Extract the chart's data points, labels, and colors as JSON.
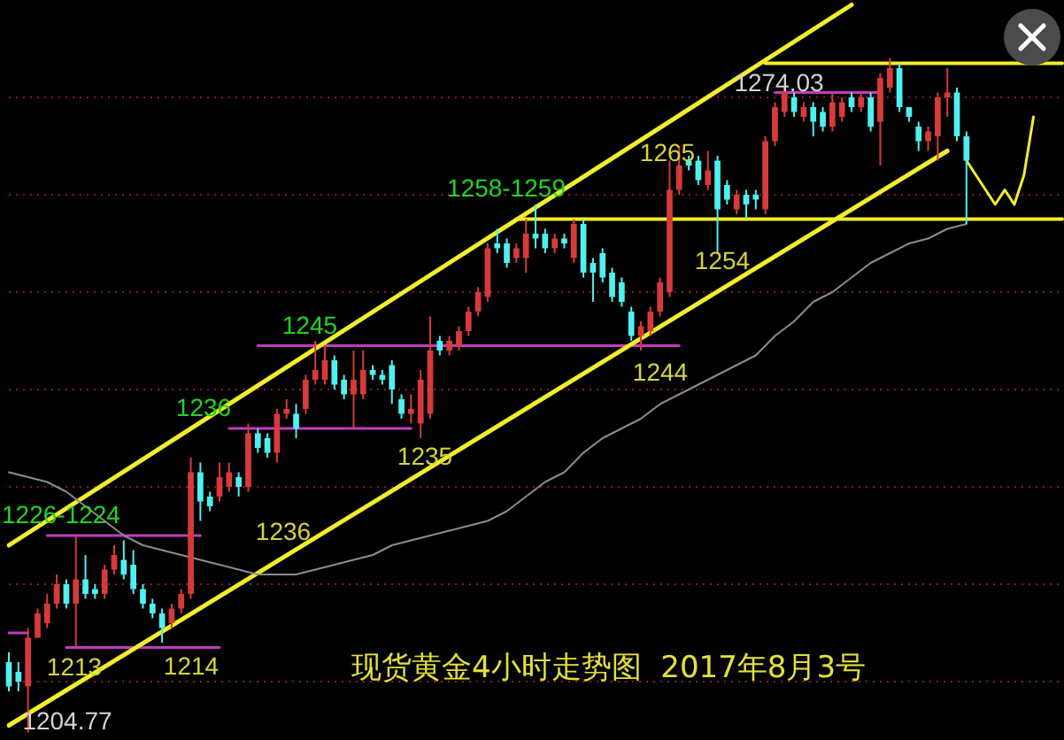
{
  "chart_data": {
    "type": "candlestick",
    "title": "现货黄金4小时走势图  2017年8月3号",
    "categories": [
      null,
      null,
      null,
      null,
      null,
      null,
      null,
      null,
      null,
      null,
      null,
      null,
      null,
      null,
      null,
      null,
      null,
      null,
      null,
      null,
      null,
      null,
      null,
      null,
      null,
      null,
      null,
      null,
      null,
      null,
      null,
      null,
      null,
      null,
      null,
      null,
      null,
      null,
      null,
      null,
      null,
      null,
      null,
      null,
      null,
      null,
      null,
      null,
      null,
      null,
      null,
      null,
      null,
      null,
      null,
      null,
      null,
      null,
      null,
      null,
      null,
      null,
      null,
      null,
      null,
      null,
      null,
      null,
      null,
      null,
      null,
      null,
      null,
      null,
      null,
      null,
      null,
      null,
      null,
      null,
      null,
      null,
      null,
      null,
      null,
      null,
      null,
      null,
      null,
      null,
      null,
      null,
      null,
      null,
      null,
      null,
      null,
      null,
      null,
      null,
      null,
      null,
      null,
      null,
      null,
      null,
      null,
      null,
      null,
      null,
      null
    ],
    "ohlc": [
      [
        1212,
        1213,
        1209,
        1209.5
      ],
      [
        1211,
        1212,
        1209,
        1210
      ],
      [
        1209.5,
        1215.5,
        1204.77,
        1214.5
      ],
      [
        1214.5,
        1217.5,
        1214.5,
        1217
      ],
      [
        1216,
        1219,
        1215.5,
        1218
      ],
      [
        1218,
        1221,
        1217.5,
        1220
      ],
      [
        1220,
        1220.5,
        1217.5,
        1218
      ],
      [
        1218,
        1225,
        1213.5,
        1220.5
      ],
      [
        1220.5,
        1223,
        1218.5,
        1219
      ],
      [
        1219.5,
        1220,
        1218.5,
        1219
      ],
      [
        1219,
        1222,
        1218.5,
        1221.5
      ],
      [
        1221.5,
        1224,
        1221,
        1223
      ],
      [
        1222.5,
        1224.5,
        1220.5,
        1221
      ],
      [
        1222,
        1223.5,
        1219,
        1219.5
      ],
      [
        1219.5,
        1220,
        1217.5,
        1218
      ],
      [
        1218,
        1218.5,
        1216.5,
        1217
      ],
      [
        1217,
        1217.5,
        1214,
        1215.5
      ],
      [
        1216,
        1218,
        1215.5,
        1217.5
      ],
      [
        1217.5,
        1219.5,
        1217,
        1219
      ],
      [
        1219,
        1233,
        1218.5,
        1231.5
      ],
      [
        1231.5,
        1232.5,
        1226.5,
        1228.5
      ],
      [
        1229,
        1229.5,
        1227.5,
        1228
      ],
      [
        1229,
        1232.5,
        1228.5,
        1231
      ],
      [
        1230,
        1232.5,
        1229.5,
        1231.5
      ],
      [
        1231,
        1231.5,
        1229,
        1230
      ],
      [
        1230,
        1236.5,
        1229.5,
        1235.5
      ],
      [
        1235.5,
        1236,
        1233.5,
        1234
      ],
      [
        1235,
        1235.5,
        1233,
        1233.5
      ],
      [
        1233.5,
        1238,
        1232.5,
        1237.5
      ],
      [
        1237.5,
        1239,
        1237,
        1238
      ],
      [
        1237.5,
        1238.5,
        1235,
        1236
      ],
      [
        1238,
        1241.5,
        1237.5,
        1241
      ],
      [
        1241,
        1245,
        1240.5,
        1242
      ],
      [
        1241,
        1244.5,
        1240.5,
        1243
      ],
      [
        1243,
        1243.5,
        1240,
        1240.5
      ],
      [
        1241,
        1241.5,
        1239,
        1239.5
      ],
      [
        1239.5,
        1244,
        1236,
        1241
      ],
      [
        1239.5,
        1244,
        1239,
        1242
      ],
      [
        1242,
        1242.5,
        1241,
        1241.5
      ],
      [
        1241.5,
        1242,
        1240.5,
        1241
      ],
      [
        1242.5,
        1243,
        1238.5,
        1240
      ],
      [
        1239,
        1239.5,
        1237,
        1237.5
      ],
      [
        1237.5,
        1239.5,
        1236.5,
        1238
      ],
      [
        1236.5,
        1242,
        1235,
        1241
      ],
      [
        1237.5,
        1247.5,
        1237,
        1244
      ],
      [
        1245,
        1245.5,
        1243.5,
        1244
      ],
      [
        1244,
        1245.5,
        1243.5,
        1245
      ],
      [
        1244.5,
        1246.5,
        1244,
        1246
      ],
      [
        1246,
        1248.5,
        1245.5,
        1248
      ],
      [
        1248,
        1250.5,
        1247.5,
        1250
      ],
      [
        1249.5,
        1255,
        1249,
        1254.5
      ],
      [
        1255,
        1256.5,
        1254,
        1254.5
      ],
      [
        1255,
        1255.5,
        1252.5,
        1253
      ],
      [
        1253.5,
        1255,
        1253,
        1254.5
      ],
      [
        1253.5,
        1257.5,
        1252,
        1256
      ],
      [
        1256,
        1259,
        1254.5,
        1255.5
      ],
      [
        1256,
        1256.5,
        1254,
        1254.5
      ],
      [
        1254.5,
        1256,
        1254,
        1255.5
      ],
      [
        1255.5,
        1256,
        1254.5,
        1255
      ],
      [
        1253.5,
        1257.5,
        1253,
        1257
      ],
      [
        1257,
        1257.5,
        1251.5,
        1252
      ],
      [
        1253,
        1253.5,
        1249,
        1252
      ],
      [
        1254,
        1254.5,
        1251,
        1251.5
      ],
      [
        1252,
        1252.5,
        1249,
        1249.5
      ],
      [
        1251,
        1251.5,
        1248.5,
        1249
      ],
      [
        1248,
        1248.5,
        1245,
        1245.5
      ],
      [
        1245.5,
        1247,
        1244,
        1246.5
      ],
      [
        1246,
        1248.5,
        1245.5,
        1248
      ],
      [
        1248,
        1251.5,
        1247.5,
        1251
      ],
      [
        1250,
        1263.5,
        1249.5,
        1260.5
      ],
      [
        1260.5,
        1265,
        1260,
        1263
      ],
      [
        1263.5,
        1264,
        1262.5,
        1263
      ],
      [
        1263.5,
        1264,
        1261,
        1261.5
      ],
      [
        1261,
        1264.5,
        1260.5,
        1262.5
      ],
      [
        1263.5,
        1264,
        1254,
        1258.5
      ],
      [
        1261,
        1261.5,
        1259,
        1259.5
      ],
      [
        1258.5,
        1260.5,
        1258,
        1260
      ],
      [
        1260,
        1260.5,
        1257.5,
        1259
      ],
      [
        1260,
        1260.5,
        1258.5,
        1259.5
      ],
      [
        1258.5,
        1266,
        1258,
        1265.5
      ],
      [
        1265.5,
        1269.5,
        1265,
        1269
      ],
      [
        1268.5,
        1271,
        1268,
        1270.5
      ],
      [
        1270,
        1270.5,
        1268,
        1268.5
      ],
      [
        1268,
        1269.5,
        1267.5,
        1269
      ],
      [
        1269,
        1269.5,
        1266,
        1267.5
      ],
      [
        1268.5,
        1269,
        1266.5,
        1267
      ],
      [
        1267,
        1270.5,
        1266.5,
        1269.5
      ],
      [
        1268,
        1270,
        1267.5,
        1269.5
      ],
      [
        1270,
        1270.5,
        1268.5,
        1269
      ],
      [
        1269,
        1270.5,
        1268.5,
        1270
      ],
      [
        1270,
        1270.5,
        1266.5,
        1267
      ],
      [
        1267.5,
        1272.5,
        1263,
        1272
      ],
      [
        1271,
        1274.03,
        1270.5,
        1273
      ],
      [
        1273,
        1273.5,
        1268.5,
        1269
      ],
      [
        1269,
        1269,
        1267.5,
        1268
      ],
      [
        1267,
        1267.5,
        1264.5,
        1265.5
      ],
      [
        1265.5,
        1267,
        1264.5,
        1266.5
      ],
      [
        1266,
        1270.5,
        1263.5,
        1270
      ],
      [
        1270,
        1273,
        1268,
        1270.5
      ],
      [
        1270.5,
        1271,
        1265.5,
        1266
      ],
      [
        1266,
        1266.5,
        1257,
        1263.5
      ],
      null,
      null,
      null,
      null,
      null,
      null,
      null,
      null,
      null,
      null
    ],
    "colors": [
      "#4ff0f0",
      "#4ff0f0",
      "#d83a3a",
      "#d83a3a",
      "#d83a3a",
      "#d83a3a",
      "#4ff0f0",
      "#d83a3a",
      "#4ff0f0",
      "#4ff0f0",
      "#d83a3a",
      "#d83a3a",
      "#4ff0f0",
      "#4ff0f0",
      "#4ff0f0",
      "#4ff0f0",
      "#4ff0f0",
      "#d83a3a",
      "#d83a3a",
      "#d83a3a",
      "#4ff0f0",
      "#4ff0f0",
      "#d83a3a",
      "#d83a3a",
      "#4ff0f0",
      "#d83a3a",
      "#4ff0f0",
      "#4ff0f0",
      "#d83a3a",
      "#d83a3a",
      "#4ff0f0",
      "#d83a3a",
      "#d83a3a",
      "#d83a3a",
      "#4ff0f0",
      "#4ff0f0",
      "#d83a3a",
      "#d83a3a",
      "#4ff0f0",
      "#4ff0f0",
      "#4ff0f0",
      "#4ff0f0",
      "#d83a3a",
      "#d83a3a",
      "#d83a3a",
      "#4ff0f0",
      "#d83a3a",
      "#d83a3a",
      "#d83a3a",
      "#d83a3a",
      "#d83a3a",
      "#4ff0f0",
      "#4ff0f0",
      "#d83a3a",
      "#d83a3a",
      "#4ff0f0",
      "#4ff0f0",
      "#d83a3a",
      "#4ff0f0",
      "#d83a3a",
      "#4ff0f0",
      "#4ff0f0",
      "#4ff0f0",
      "#4ff0f0",
      "#4ff0f0",
      "#4ff0f0",
      "#d83a3a",
      "#d83a3a",
      "#d83a3a",
      "#d83a3a",
      "#d83a3a",
      "#4ff0f0",
      "#4ff0f0",
      "#d83a3a",
      "#4ff0f0",
      "#4ff0f0",
      "#d83a3a",
      "#4ff0f0",
      "#4ff0f0",
      "#d83a3a",
      "#d83a3a",
      "#d83a3a",
      "#4ff0f0",
      "#d83a3a",
      "#4ff0f0",
      "#4ff0f0",
      "#d83a3a",
      "#d83a3a",
      "#4ff0f0",
      "#d83a3a",
      "#4ff0f0",
      "#d83a3a",
      "#d83a3a",
      "#4ff0f0",
      "#4ff0f0",
      "#4ff0f0",
      "#d83a3a",
      "#d83a3a",
      "#d83a3a",
      "#4ff0f0",
      "#4ff0f0",
      null,
      null,
      null,
      null,
      null,
      null,
      null,
      null,
      null,
      null
    ],
    "series": [
      {
        "type": "line",
        "color": "#8c8c8c",
        "values": [
          1231.5,
          null,
          1231,
          null,
          1230.5,
          null,
          1229.5,
          null,
          1228,
          null,
          1226.5,
          null,
          1225,
          null,
          1224,
          null,
          1223.5,
          null,
          1223,
          null,
          1222.5,
          null,
          1222,
          null,
          1221.5,
          null,
          1221,
          null,
          1221,
          null,
          1221,
          null,
          1221.5,
          null,
          1222,
          null,
          1222.5,
          null,
          1223,
          null,
          1224,
          null,
          1224.5,
          null,
          1225,
          null,
          1225.5,
          null,
          1226,
          null,
          1226.5,
          null,
          1227.5,
          null,
          1229,
          null,
          1230.5,
          null,
          1231.5,
          null,
          1233.5,
          null,
          1235,
          null,
          1236,
          null,
          1237,
          null,
          1238.5,
          null,
          1239.5,
          null,
          1240.5,
          null,
          1241.5,
          null,
          1242.5,
          null,
          1243.5,
          null,
          1245.5,
          null,
          1247,
          null,
          1249,
          null,
          1250,
          null,
          1251.5,
          null,
          1253,
          null,
          1254,
          null,
          1255,
          null,
          1255.5,
          null,
          1256.5,
          null,
          1257,
          null,
          null,
          null,
          null,
          null,
          null,
          null,
          null,
          null,
          null
        ]
      },
      {
        "type": "line",
        "color": "#f2ee2a",
        "values": [
          1224,
          null,
          null,
          null,
          null,
          null,
          null,
          null,
          null,
          null,
          null,
          null,
          null,
          null,
          null,
          null,
          null,
          null,
          null,
          null,
          null,
          null,
          null,
          null,
          null,
          null,
          null,
          null,
          null,
          null,
          null,
          null,
          null,
          null,
          null,
          null,
          null,
          null,
          null,
          null,
          null,
          null,
          null,
          null,
          null,
          null,
          null,
          null,
          null,
          null,
          null,
          null,
          null,
          null,
          null,
          null,
          null,
          null,
          null,
          null,
          null,
          null,
          null,
          null,
          null,
          null,
          null,
          null,
          null,
          null,
          null,
          null,
          null,
          null,
          null,
          null,
          null,
          null,
          null,
          null,
          null,
          null,
          null,
          null,
          null,
          null,
          null,
          null,
          1279.5,
          null,
          null,
          null,
          null,
          null,
          null,
          null,
          null,
          null,
          null,
          null,
          null,
          null,
          null,
          null,
          null,
          null,
          null,
          null,
          null,
          null,
          null
        ]
      },
      {
        "type": "line",
        "color": "#f2ee2a",
        "values": [
          1205.5,
          null,
          null,
          null,
          null,
          null,
          null,
          null,
          null,
          null,
          null,
          null,
          null,
          null,
          null,
          null,
          null,
          null,
          null,
          null,
          null,
          null,
          null,
          null,
          null,
          null,
          null,
          null,
          null,
          null,
          null,
          null,
          null,
          null,
          null,
          null,
          null,
          null,
          null,
          null,
          null,
          null,
          null,
          null,
          null,
          null,
          null,
          null,
          null,
          null,
          null,
          null,
          null,
          null,
          null,
          null,
          null,
          null,
          null,
          null,
          null,
          null,
          null,
          null,
          null,
          null,
          null,
          null,
          null,
          null,
          null,
          null,
          null,
          null,
          null,
          null,
          null,
          null,
          null,
          null,
          null,
          null,
          null,
          null,
          null,
          null,
          null,
          null,
          null,
          null,
          null,
          null,
          null,
          null,
          null,
          null,
          null,
          null,
          1264.5,
          null,
          null,
          null,
          null,
          null,
          null,
          null,
          null,
          null,
          null,
          null,
          null
        ]
      },
      {
        "type": "line",
        "color": "#f2ee2a",
        "values": [
          null,
          null,
          null,
          null,
          null,
          null,
          null,
          null,
          null,
          null,
          null,
          null,
          null,
          null,
          null,
          null,
          null,
          null,
          null,
          null,
          null,
          null,
          null,
          null,
          null,
          null,
          null,
          null,
          null,
          null,
          null,
          null,
          null,
          null,
          null,
          null,
          null,
          null,
          null,
          null,
          null,
          null,
          null,
          null,
          null,
          null,
          null,
          null,
          null,
          null,
          null,
          null,
          null,
          null,
          null,
          null,
          null,
          null,
          null,
          null,
          null,
          null,
          null,
          null,
          null,
          null,
          null,
          null,
          null,
          null,
          null,
          null,
          null,
          null,
          null,
          null,
          null,
          null,
          null,
          1273.5,
          null,
          null,
          null,
          null,
          null,
          null,
          null,
          null,
          null,
          null,
          null,
          null,
          null,
          null,
          null,
          null,
          null,
          null,
          null,
          null,
          null,
          null,
          null,
          null,
          null,
          null,
          null,
          null,
          null,
          null,
          1273.5
        ]
      },
      {
        "type": "line",
        "color": "#f2ee2a",
        "values": [
          null,
          null,
          null,
          null,
          null,
          null,
          null,
          null,
          null,
          null,
          null,
          null,
          null,
          null,
          null,
          null,
          null,
          null,
          null,
          null,
          null,
          null,
          null,
          null,
          null,
          null,
          null,
          null,
          null,
          null,
          null,
          null,
          null,
          null,
          null,
          null,
          null,
          null,
          null,
          null,
          null,
          null,
          null,
          null,
          null,
          null,
          null,
          null,
          null,
          null,
          null,
          null,
          null,
          1257.5,
          null,
          null,
          null,
          null,
          null,
          null,
          null,
          null,
          null,
          null,
          null,
          null,
          null,
          null,
          null,
          null,
          null,
          null,
          null,
          null,
          null,
          null,
          null,
          null,
          null,
          null,
          null,
          null,
          null,
          null,
          null,
          null,
          null,
          null,
          null,
          null,
          null,
          null,
          null,
          null,
          null,
          null,
          null,
          null,
          null,
          null,
          null,
          null,
          null,
          null,
          null,
          null,
          null,
          null,
          null,
          null,
          1257.5
        ]
      },
      {
        "type": "line",
        "color": "#c03cc0",
        "values": [
          null,
          null,
          null,
          null,
          1225,
          null,
          null,
          null,
          null,
          null,
          null,
          null,
          null,
          null,
          null,
          null,
          null,
          null,
          null,
          null,
          1225,
          null,
          null,
          null,
          null,
          null,
          null,
          null,
          null,
          null,
          null,
          null,
          null,
          null,
          null,
          null,
          null,
          null,
          null,
          null,
          null,
          null,
          null,
          null,
          null,
          null,
          null,
          null,
          null,
          null,
          null,
          null,
          null,
          null,
          null,
          null,
          null,
          null,
          null,
          null,
          null,
          null,
          null,
          null,
          null,
          null,
          null,
          null,
          null,
          null,
          null,
          null,
          null,
          null,
          null,
          null,
          null,
          null,
          null,
          null,
          null,
          null,
          null,
          null,
          null,
          null,
          null,
          null,
          null,
          null,
          null,
          null,
          null,
          null,
          null,
          null,
          null,
          null,
          null,
          null,
          null,
          null,
          null,
          null,
          null,
          null,
          null,
          null,
          null,
          null,
          null
        ]
      },
      {
        "type": "line",
        "color": "#c03cc0",
        "values": [
          null,
          null,
          null,
          null,
          null,
          null,
          1213.5,
          null,
          null,
          null,
          null,
          null,
          null,
          null,
          null,
          null,
          null,
          null,
          null,
          null,
          null,
          null,
          1213.5,
          null,
          null,
          null,
          null,
          null,
          null,
          null,
          null,
          null,
          null,
          null,
          null,
          null,
          null,
          null,
          null,
          null,
          null,
          null,
          null,
          null,
          null,
          null,
          null,
          null,
          null,
          null,
          null,
          null,
          null,
          null,
          null,
          null,
          null,
          null,
          null,
          null,
          null,
          null,
          null,
          null,
          null,
          null,
          null,
          null,
          null,
          null,
          null,
          null,
          null,
          null,
          null,
          null,
          null,
          null,
          null,
          null,
          null,
          null,
          null,
          null,
          null,
          null,
          null,
          null,
          null,
          null,
          null,
          null,
          null,
          null,
          null,
          null,
          null,
          null,
          null,
          null,
          null,
          null,
          null,
          null,
          null,
          null,
          null,
          null,
          null,
          null,
          null
        ]
      },
      {
        "type": "line",
        "color": "#c03cc0",
        "values": [
          null,
          null,
          null,
          null,
          null,
          null,
          null,
          null,
          null,
          null,
          null,
          null,
          null,
          null,
          null,
          null,
          null,
          null,
          null,
          null,
          null,
          null,
          null,
          1236,
          null,
          null,
          null,
          null,
          null,
          null,
          null,
          null,
          null,
          null,
          null,
          null,
          null,
          null,
          null,
          null,
          null,
          null,
          1236,
          null,
          null,
          null,
          null,
          null,
          null,
          null,
          null,
          null,
          null,
          null,
          null,
          null,
          null,
          null,
          null,
          null,
          null,
          null,
          null,
          null,
          null,
          null,
          null,
          null,
          null,
          null,
          null,
          null,
          null,
          null,
          null,
          null,
          null,
          null,
          null,
          null,
          null,
          null,
          null,
          null,
          null,
          null,
          null,
          null,
          null,
          null,
          null,
          null,
          null,
          null,
          null,
          null,
          null,
          null,
          null,
          null,
          null,
          null,
          null,
          null,
          null,
          null,
          null,
          null,
          null,
          null,
          null
        ]
      },
      {
        "type": "line",
        "color": "#c03cc0",
        "values": [
          null,
          null,
          null,
          null,
          null,
          null,
          null,
          null,
          null,
          null,
          null,
          null,
          null,
          null,
          null,
          null,
          null,
          null,
          null,
          null,
          null,
          null,
          null,
          null,
          null,
          null,
          1244.5,
          null,
          null,
          null,
          null,
          null,
          null,
          null,
          null,
          null,
          null,
          null,
          null,
          null,
          null,
          null,
          null,
          null,
          null,
          null,
          null,
          null,
          null,
          null,
          null,
          null,
          null,
          null,
          null,
          null,
          null,
          null,
          null,
          null,
          null,
          null,
          null,
          null,
          null,
          null,
          null,
          null,
          null,
          null,
          1244.5,
          null,
          null,
          null,
          null,
          null,
          null,
          null,
          null,
          null,
          null,
          null,
          null,
          null,
          null,
          null,
          null,
          null,
          null,
          null,
          null,
          null,
          null,
          null,
          null,
          null,
          null,
          null,
          null,
          null,
          null,
          null,
          null,
          null,
          null,
          null,
          null,
          null,
          null,
          null,
          null
        ]
      },
      {
        "type": "line",
        "color": "#c03cc0",
        "values": [
          null,
          null,
          null,
          null,
          null,
          null,
          null,
          null,
          null,
          null,
          null,
          null,
          null,
          null,
          null,
          null,
          null,
          null,
          null,
          null,
          null,
          null,
          null,
          null,
          null,
          null,
          null,
          null,
          null,
          null,
          null,
          null,
          null,
          null,
          null,
          null,
          null,
          null,
          null,
          null,
          null,
          null,
          null,
          null,
          null,
          null,
          null,
          null,
          null,
          null,
          null,
          null,
          null,
          null,
          null,
          null,
          null,
          null,
          null,
          null,
          null,
          null,
          null,
          null,
          null,
          null,
          null,
          null,
          null,
          null,
          null,
          null,
          null,
          null,
          null,
          null,
          null,
          null,
          null,
          null,
          1270.5,
          null,
          null,
          null,
          null,
          null,
          null,
          null,
          null,
          null,
          null,
          1270.5,
          null,
          null,
          null,
          null,
          null,
          null,
          null,
          null,
          null,
          null,
          null,
          null,
          null,
          null,
          null,
          null,
          null,
          null,
          null
        ]
      },
      {
        "type": "line",
        "color": "#c03cc0",
        "values": [
          1215,
          null,
          1215,
          null,
          null,
          null,
          null,
          null,
          null,
          null,
          null,
          null,
          null,
          null,
          null,
          null,
          null,
          null,
          null,
          null,
          null,
          null,
          null,
          null,
          null,
          null,
          null,
          null,
          null,
          null,
          null,
          null,
          null,
          null,
          null,
          null,
          null,
          null,
          null,
          null,
          null,
          null,
          null,
          null,
          null,
          null,
          null,
          null,
          null,
          null,
          null,
          null,
          null,
          null,
          null,
          null,
          null,
          null,
          null,
          null,
          null,
          null,
          null,
          null,
          null,
          null,
          null,
          null,
          null,
          null,
          null,
          null,
          null,
          null,
          null,
          null,
          null,
          null,
          null,
          null,
          null,
          null,
          null,
          null,
          null,
          null,
          null,
          null,
          null,
          null,
          null,
          null,
          null,
          null,
          null,
          null,
          null,
          null,
          null,
          null,
          null,
          null,
          null,
          null,
          null,
          null,
          null,
          null,
          null,
          null,
          null
        ]
      },
      {
        "type": "line",
        "color": "#f2ee2a",
        "values": [
          null,
          null,
          null,
          null,
          null,
          null,
          null,
          null,
          null,
          null,
          null,
          null,
          null,
          null,
          null,
          null,
          null,
          null,
          null,
          null,
          null,
          null,
          null,
          null,
          null,
          null,
          null,
          null,
          null,
          null,
          null,
          null,
          null,
          null,
          null,
          null,
          null,
          null,
          null,
          null,
          null,
          null,
          null,
          null,
          null,
          null,
          null,
          null,
          null,
          null,
          null,
          null,
          null,
          null,
          null,
          null,
          null,
          null,
          null,
          null,
          null,
          null,
          null,
          null,
          null,
          null,
          null,
          null,
          null,
          null,
          null,
          null,
          null,
          null,
          null,
          null,
          null,
          null,
          null,
          null,
          null,
          null,
          null,
          null,
          null,
          null,
          null,
          null,
          null,
          null,
          null,
          null,
          null,
          null,
          null,
          null,
          null,
          null,
          null,
          null,
          1263.5,
          1262,
          1260.5,
          1259,
          1260.5,
          1259,
          1262,
          1268,
          null,
          null,
          null
        ]
      }
    ],
    "ylim": [
      1204,
      1280
    ],
    "yticks": [
      {
        "value": 1210,
        "label": null
      },
      {
        "value": 1220,
        "label": null
      },
      {
        "value": 1230,
        "label": null
      },
      {
        "value": 1240,
        "label": null
      },
      {
        "value": 1250,
        "label": null
      },
      {
        "value": 1260,
        "label": null
      },
      {
        "value": 1270,
        "label": null
      }
    ],
    "grid": "y",
    "tick_labels": false,
    "annotations": [
      "1204.77",
      {
        "text": "1213",
        "y": 1213
      },
      {
        "text": "1214",
        "y": 1214
      },
      {
        "text": "1226-1224",
        "y": 1225
      },
      {
        "text": "1236",
        "y": 1236
      },
      "1236",
      {
        "text": "1235",
        "y": 1235
      },
      {
        "text": "1245",
        "y": 1245
      },
      {
        "text": "1244",
        "y": 1244
      },
      "1258-1259",
      "1265",
      {
        "text": "1254",
        "y": 1254
      },
      {
        "text": "1274.03",
        "y": 1274.03
      }
    ]
  }
}
